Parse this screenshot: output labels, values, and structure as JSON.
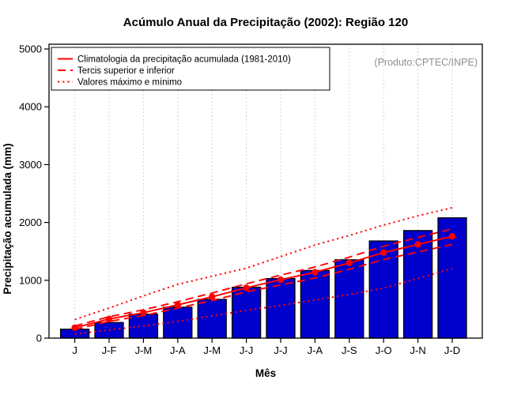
{
  "page": {
    "title": "Acúmulo Anual da Precipitação (2002): Região 120",
    "annotation": "(Produto:CPTEC/INPE)"
  },
  "chart_data": {
    "type": "bar",
    "title": "Acúmulo Anual da Precipitação (2002): Região 120",
    "xlabel": "Mês",
    "ylabel": "Precipitação acumulada (mm)",
    "annotation": "(Produto:CPTEC/INPE)",
    "categories": [
      "J",
      "J-F",
      "J-M",
      "J-A",
      "J-M",
      "J-J",
      "J-J",
      "J-A",
      "J-S",
      "J-O",
      "J-N",
      "J-D"
    ],
    "ylim": [
      0,
      5000
    ],
    "yticks": [
      0,
      1000,
      2000,
      3000,
      4000,
      5000
    ],
    "grid": "vertical-dotted-gray",
    "legend_position": "top-left",
    "bars": {
      "name": "Precipitação acumulada (2002)",
      "color": "#0000CC",
      "border": "#000000",
      "values": [
        155,
        270,
        415,
        535,
        670,
        880,
        1030,
        1170,
        1355,
        1680,
        1860,
        2080
      ]
    },
    "lines": [
      {
        "name": "climatologia",
        "style": "solid",
        "marker": "circle",
        "color": "#FF0000",
        "values": [
          180,
          330,
          440,
          575,
          715,
          870,
          1010,
          1140,
          1300,
          1480,
          1620,
          1760
        ]
      },
      {
        "name": "tercil-superior",
        "style": "longdash",
        "marker": "none",
        "color": "#FF0000",
        "values": [
          210,
          370,
          490,
          630,
          780,
          940,
          1090,
          1230,
          1400,
          1590,
          1740,
          1890
        ]
      },
      {
        "name": "tercil-inferior",
        "style": "longdash",
        "marker": "none",
        "color": "#FF0000",
        "values": [
          150,
          290,
          390,
          520,
          650,
          800,
          920,
          1040,
          1190,
          1360,
          1490,
          1620
        ]
      },
      {
        "name": "maximo",
        "style": "dotted",
        "marker": "none",
        "color": "#FF0000",
        "values": [
          320,
          520,
          730,
          930,
          1070,
          1210,
          1410,
          1610,
          1775,
          1955,
          2115,
          2255
        ]
      },
      {
        "name": "minimo",
        "style": "dotted",
        "marker": "none",
        "color": "#FF0000",
        "values": [
          70,
          140,
          210,
          290,
          385,
          480,
          565,
          660,
          755,
          865,
          1030,
          1205
        ]
      }
    ],
    "legend": [
      {
        "label": "Climatologia da precipitação acumulada (1981-2010)",
        "style": "solid"
      },
      {
        "label": "Tercis superior e inferior",
        "style": "longdash"
      },
      {
        "label": "Valores máximo e mínimo",
        "style": "dotted"
      }
    ]
  },
  "colors": {
    "bar_fill": "#0000CC",
    "line_red": "#FF0000",
    "grid_gray": "#C8C8C8",
    "annotation_gray": "#8F8F8F",
    "frame_black": "#000000",
    "background": "#FFFFFF"
  }
}
